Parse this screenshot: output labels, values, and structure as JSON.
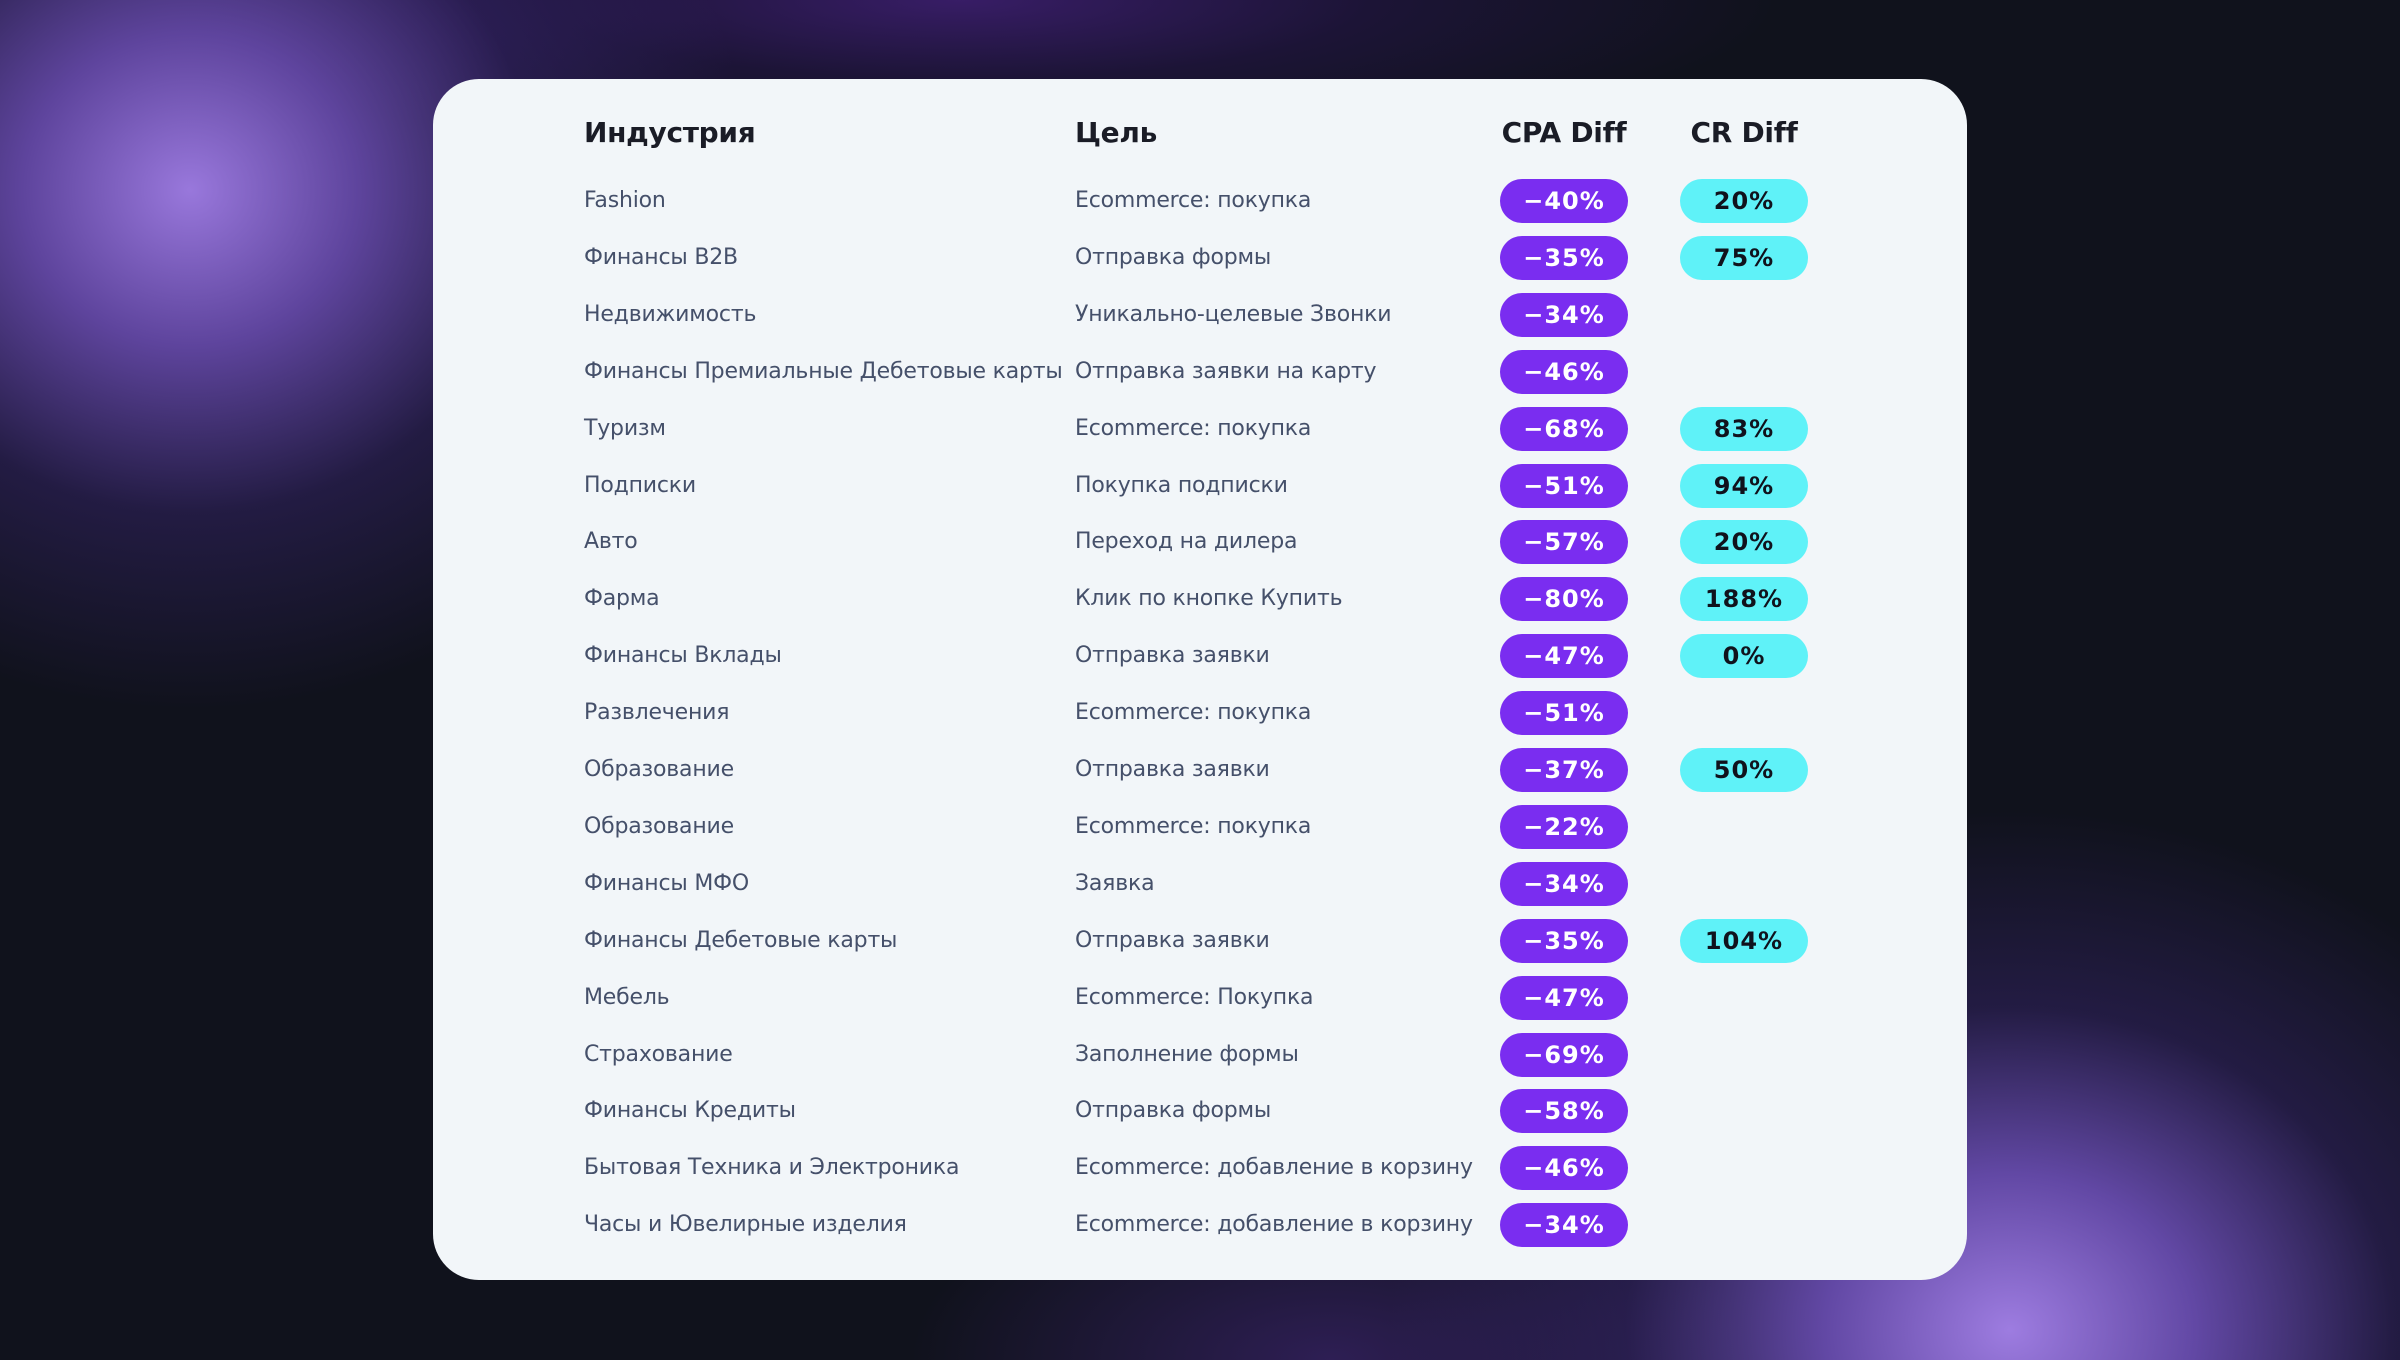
{
  "table": {
    "headers": {
      "industry": "Индустрия",
      "goal": "Цель",
      "cpa": "CPA Diff",
      "cr": "CR Diff"
    },
    "rows": [
      {
        "industry": "Fashion",
        "goal": "Ecommerce: покупка",
        "cpa": "−40%",
        "cr": "20%"
      },
      {
        "industry": "Финансы B2B",
        "goal": "Отправка формы",
        "cpa": "−35%",
        "cr": "75%"
      },
      {
        "industry": "Недвижимость",
        "goal": "Уникально-целевые Звонки",
        "cpa": "−34%",
        "cr": ""
      },
      {
        "industry": "Финансы Премиальные Дебетовые карты",
        "goal": "Отправка заявки на карту",
        "cpa": "−46%",
        "cr": ""
      },
      {
        "industry": "Туризм",
        "goal": "Ecommerce: покупка",
        "cpa": "−68%",
        "cr": "83%"
      },
      {
        "industry": "Подписки",
        "goal": "Покупка подписки",
        "cpa": "−51%",
        "cr": "94%"
      },
      {
        "industry": "Авто",
        "goal": "Переход на дилера",
        "cpa": "−57%",
        "cr": "20%"
      },
      {
        "industry": "Фарма",
        "goal": "Клик по кнопке Купить",
        "cpa": "−80%",
        "cr": "188%"
      },
      {
        "industry": "Финансы Вклады",
        "goal": "Отправка заявки",
        "cpa": "−47%",
        "cr": "0%"
      },
      {
        "industry": "Развлечения",
        "goal": "Ecommerce: покупка",
        "cpa": "−51%",
        "cr": ""
      },
      {
        "industry": "Образование",
        "goal": "Отправка заявки",
        "cpa": "−37%",
        "cr": "50%"
      },
      {
        "industry": "Образование",
        "goal": "Ecommerce: покупка",
        "cpa": "−22%",
        "cr": ""
      },
      {
        "industry": "Финансы МФО",
        "goal": "Заявка",
        "cpa": "−34%",
        "cr": ""
      },
      {
        "industry": "Финансы Дебетовые карты",
        "goal": "Отправка заявки",
        "cpa": "−35%",
        "cr": "104%"
      },
      {
        "industry": "Мебель",
        "goal": "Ecommerce: Покупка",
        "cpa": "−47%",
        "cr": ""
      },
      {
        "industry": "Страхование",
        "goal": "Заполнение формы",
        "cpa": "−69%",
        "cr": ""
      },
      {
        "industry": "Финансы Кредиты",
        "goal": "Отправка формы",
        "cpa": "−58%",
        "cr": ""
      },
      {
        "industry": "Бытовая Техника и Электроника",
        "goal": "Ecommerce: добавление в корзину",
        "cpa": "−46%",
        "cr": ""
      },
      {
        "industry": "Часы и Ювелирные изделия",
        "goal": "Ecommerce: добавление в корзину",
        "cpa": "−34%",
        "cr": ""
      }
    ]
  },
  "colors": {
    "cpa_pill": "#7a2df0",
    "cr_pill": "#5ff2f8",
    "card": "#f2f6f9"
  }
}
